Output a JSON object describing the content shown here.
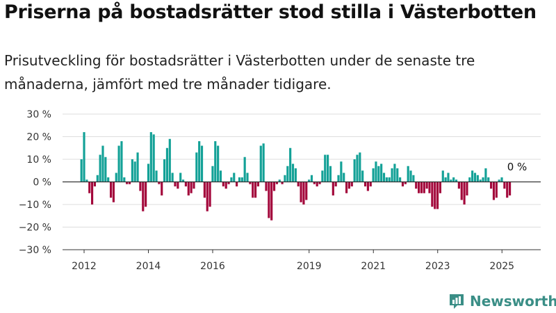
{
  "header": {
    "title": "Priserna på bostadsrätter stod stilla i Västerbotten",
    "subtitle": "Prisutveckling för bostadsrätter i Västerbotten under de senaste tre månaderna, jämfört med tre månader tidigare."
  },
  "colors": {
    "positive": "#13a197",
    "negative": "#a3073b",
    "grid": "#dddddd",
    "axis": "#333333"
  },
  "logo": {
    "text": "Newsworthy",
    "icon": "bar-chart-logo-icon"
  },
  "chart_data": {
    "type": "bar",
    "title": "",
    "xlabel": "",
    "ylabel": "",
    "ylim": [
      -30,
      30
    ],
    "y_ticks": [
      30,
      20,
      10,
      0,
      -10,
      -20,
      -30
    ],
    "y_tick_labels": [
      "30 %",
      "20 %",
      "10 %",
      "0 %",
      "−10 %",
      "−20 %",
      "−30 %"
    ],
    "x_ticks": [
      2012,
      2014,
      2016,
      2019,
      2021,
      2023,
      2025
    ],
    "x_tick_labels": [
      "2012",
      "2014",
      "2016",
      "2019",
      "2021",
      "2023",
      "2025"
    ],
    "x_start": 2011.917,
    "x_step": 0.0833,
    "grid": true,
    "legend": "none",
    "annotation": "0 %",
    "values": [
      10,
      22,
      1,
      -5,
      -10,
      -2,
      3,
      12,
      16,
      11,
      2,
      -7,
      -9,
      4,
      16,
      18,
      2,
      -1,
      -1,
      10,
      9,
      13,
      -4,
      -13,
      -11,
      8,
      22,
      21,
      5,
      -1,
      -6,
      10,
      15,
      19,
      4,
      -2,
      -3,
      4,
      1,
      -2,
      -6,
      -5,
      -3,
      13,
      18,
      16,
      -7,
      -13,
      -11,
      7,
      18,
      16,
      5,
      -2,
      -3,
      -1,
      2,
      4,
      -2,
      2,
      2,
      11,
      4,
      -1,
      -7,
      -7,
      -2,
      16,
      17,
      -4,
      -16,
      -17,
      -4,
      -1,
      1,
      -1,
      3,
      7,
      15,
      8,
      6,
      -2,
      -9,
      -10,
      -8,
      1,
      3,
      -1,
      -2,
      -1,
      5,
      12,
      12,
      7,
      -6,
      -2,
      3,
      9,
      4,
      -5,
      -3,
      -2,
      10,
      12,
      13,
      5,
      -2,
      -4,
      -2,
      6,
      9,
      7,
      8,
      4,
      2,
      2,
      6,
      8,
      6,
      2,
      -2,
      -1,
      7,
      5,
      3,
      -3,
      -5,
      -5,
      -5,
      -3,
      -5,
      -11,
      -12,
      -12,
      -5,
      5,
      2,
      4,
      1,
      2,
      1,
      -3,
      -8,
      -10,
      -6,
      2,
      5,
      4,
      3,
      1,
      2,
      6,
      2,
      -3,
      -8,
      -7,
      1,
      2,
      -3,
      -7,
      -6,
      0
    ]
  }
}
